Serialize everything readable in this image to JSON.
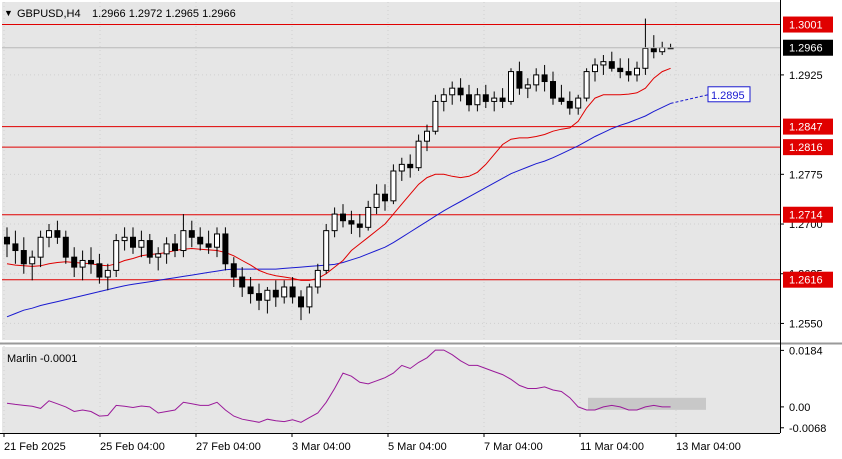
{
  "header": {
    "symbol_timeframe": "GBPUSD,H4",
    "ohlc": "1.2966 1.2972 1.2965 1.2966"
  },
  "colors": {
    "background": "#ffffff",
    "plot_background": "#e6e6e6",
    "bull_body": "#ffffff",
    "bear_body": "#000000",
    "level_line": "#e00000",
    "fast_ma": "#e00000",
    "slow_ma": "#1a1ad0",
    "oscillator": "#9a1a9a",
    "forecast_label": "#1a1ad0"
  },
  "price_axis": {
    "ticks": [
      "1.2925",
      "1.2775",
      "1.2700",
      "1.2625",
      "1.2550"
    ],
    "ylim": [
      1.2525,
      1.3035
    ]
  },
  "levels": [
    {
      "value": "1.3001"
    },
    {
      "value": "1.2847"
    },
    {
      "value": "1.2816"
    },
    {
      "value": "1.2714"
    },
    {
      "value": "1.2616"
    }
  ],
  "current_price_label": "1.2966",
  "forecast_label": "1.2895",
  "indicator": {
    "label": "Marlin -0.0001",
    "ticks": [
      "0.0184",
      "0.00",
      "-0.0068"
    ],
    "ylim": [
      -0.0085,
      0.0195
    ]
  },
  "time_axis": {
    "labels": [
      "21 Feb 2025",
      "25 Feb 04:00",
      "27 Feb 04:00",
      "3 Mar 04:00",
      "5 Mar 04:00",
      "7 Mar 04:00",
      "11 Mar 04:00",
      "13 Mar 04:00"
    ]
  },
  "chart_data": {
    "type": "candlestick",
    "candles": [
      [
        1.268,
        1.2695,
        1.265,
        1.267
      ],
      [
        1.267,
        1.269,
        1.264,
        1.266
      ],
      [
        1.266,
        1.268,
        1.2625,
        1.264
      ],
      [
        1.264,
        1.266,
        1.2615,
        1.265
      ],
      [
        1.265,
        1.269,
        1.2635,
        1.268
      ],
      [
        1.268,
        1.27,
        1.2665,
        1.269
      ],
      [
        1.269,
        1.2705,
        1.267,
        1.268
      ],
      [
        1.268,
        1.269,
        1.264,
        1.265
      ],
      [
        1.265,
        1.2665,
        1.262,
        1.2635
      ],
      [
        1.2635,
        1.266,
        1.2615,
        1.2645
      ],
      [
        1.2645,
        1.2665,
        1.2625,
        1.264
      ],
      [
        1.264,
        1.2655,
        1.261,
        1.262
      ],
      [
        1.262,
        1.264,
        1.26,
        1.263
      ],
      [
        1.263,
        1.2685,
        1.262,
        1.2675
      ],
      [
        1.2675,
        1.2695,
        1.266,
        1.268
      ],
      [
        1.268,
        1.2695,
        1.2655,
        1.2665
      ],
      [
        1.2665,
        1.269,
        1.265,
        1.2675
      ],
      [
        1.2675,
        1.2685,
        1.264,
        1.265
      ],
      [
        1.265,
        1.2665,
        1.263,
        1.2655
      ],
      [
        1.2655,
        1.268,
        1.264,
        1.267
      ],
      [
        1.267,
        1.2685,
        1.265,
        1.266
      ],
      [
        1.266,
        1.2715,
        1.265,
        1.269
      ],
      [
        1.269,
        1.2705,
        1.2665,
        1.268
      ],
      [
        1.268,
        1.2695,
        1.266,
        1.267
      ],
      [
        1.267,
        1.269,
        1.2655,
        1.2665
      ],
      [
        1.2665,
        1.2695,
        1.265,
        1.2685
      ],
      [
        1.2685,
        1.2695,
        1.263,
        1.264
      ],
      [
        1.264,
        1.265,
        1.2605,
        1.262
      ],
      [
        1.262,
        1.2635,
        1.259,
        1.2605
      ],
      [
        1.2605,
        1.262,
        1.258,
        1.2595
      ],
      [
        1.2595,
        1.261,
        1.257,
        1.2585
      ],
      [
        1.2585,
        1.2605,
        1.2565,
        1.26
      ],
      [
        1.26,
        1.2615,
        1.2575,
        1.259
      ],
      [
        1.259,
        1.2615,
        1.258,
        1.2605
      ],
      [
        1.2605,
        1.262,
        1.258,
        1.259
      ],
      [
        1.259,
        1.26,
        1.2555,
        1.2575
      ],
      [
        1.2575,
        1.261,
        1.2565,
        1.2605
      ],
      [
        1.2605,
        1.264,
        1.2595,
        1.263
      ],
      [
        1.263,
        1.27,
        1.2625,
        1.269
      ],
      [
        1.269,
        1.2725,
        1.268,
        1.2715
      ],
      [
        1.2715,
        1.273,
        1.2695,
        1.2705
      ],
      [
        1.2705,
        1.272,
        1.2685,
        1.27
      ],
      [
        1.27,
        1.2715,
        1.268,
        1.2695
      ],
      [
        1.2695,
        1.2735,
        1.269,
        1.2725
      ],
      [
        1.2725,
        1.276,
        1.2715,
        1.2745
      ],
      [
        1.2745,
        1.276,
        1.272,
        1.2735
      ],
      [
        1.2735,
        1.279,
        1.273,
        1.278
      ],
      [
        1.278,
        1.28,
        1.2765,
        1.279
      ],
      [
        1.279,
        1.2805,
        1.277,
        1.2785
      ],
      [
        1.2785,
        1.2835,
        1.278,
        1.2825
      ],
      [
        1.2825,
        1.285,
        1.281,
        1.284
      ],
      [
        1.284,
        1.2895,
        1.2835,
        1.2885
      ],
      [
        1.2885,
        1.2905,
        1.287,
        1.2895
      ],
      [
        1.2895,
        1.2915,
        1.288,
        1.2905
      ],
      [
        1.2905,
        1.292,
        1.2885,
        1.2895
      ],
      [
        1.2895,
        1.291,
        1.287,
        1.288
      ],
      [
        1.288,
        1.2905,
        1.287,
        1.2895
      ],
      [
        1.2895,
        1.291,
        1.2875,
        1.2885
      ],
      [
        1.2885,
        1.29,
        1.287,
        1.289
      ],
      [
        1.289,
        1.2905,
        1.2875,
        1.2885
      ],
      [
        1.2885,
        1.2935,
        1.288,
        1.293
      ],
      [
        1.293,
        1.2945,
        1.2895,
        1.2905
      ],
      [
        1.2905,
        1.292,
        1.289,
        1.291
      ],
      [
        1.291,
        1.2935,
        1.29,
        1.2925
      ],
      [
        1.2925,
        1.294,
        1.29,
        1.2915
      ],
      [
        1.2915,
        1.293,
        1.288,
        1.289
      ],
      [
        1.289,
        1.291,
        1.288,
        1.2885
      ],
      [
        1.2885,
        1.29,
        1.2865,
        1.2875
      ],
      [
        1.2875,
        1.2895,
        1.2865,
        1.289
      ],
      [
        1.289,
        1.2935,
        1.2885,
        1.293
      ],
      [
        1.293,
        1.295,
        1.2915,
        1.294
      ],
      [
        1.294,
        1.2955,
        1.2925,
        1.2945
      ],
      [
        1.2945,
        1.296,
        1.293,
        1.2935
      ],
      [
        1.2935,
        1.295,
        1.292,
        1.293
      ],
      [
        1.293,
        1.295,
        1.2915,
        1.2925
      ],
      [
        1.2925,
        1.2945,
        1.2915,
        1.2935
      ],
      [
        1.2935,
        1.301,
        1.2925,
        1.2965
      ],
      [
        1.2965,
        1.2985,
        1.295,
        1.296
      ],
      [
        1.296,
        1.2975,
        1.2955,
        1.2966
      ],
      [
        1.2966,
        1.2972,
        1.2965,
        1.2966
      ]
    ],
    "fast_ma": [
      1.264,
      1.2638,
      1.2637,
      1.2636,
      1.2637,
      1.264,
      1.2642,
      1.2643,
      1.2642,
      1.2641,
      1.264,
      1.2638,
      1.2637,
      1.264,
      1.2645,
      1.2648,
      1.2652,
      1.2654,
      1.2655,
      1.2657,
      1.266,
      1.2662,
      1.2663,
      1.2662,
      1.2661,
      1.266,
      1.2657,
      1.2652,
      1.2645,
      1.2638,
      1.263,
      1.2625,
      1.2622,
      1.262,
      1.2618,
      1.2615,
      1.2615,
      1.2618,
      1.2625,
      1.2635,
      1.2645,
      1.266,
      1.267,
      1.268,
      1.269,
      1.27,
      1.2715,
      1.273,
      1.2745,
      1.276,
      1.277,
      1.2775,
      1.2775,
      1.2772,
      1.277,
      1.2772,
      1.2778,
      1.279,
      1.2805,
      1.282,
      1.2828,
      1.283,
      1.283,
      1.2832,
      1.2835,
      1.284,
      1.2843,
      1.2845,
      1.2855,
      1.2875,
      1.289,
      1.2895,
      1.2895,
      1.2895,
      1.2896,
      1.2898,
      1.2905,
      1.292,
      1.293,
      1.2935
    ],
    "slow_ma": [
      1.256,
      1.2565,
      1.257,
      1.2573,
      1.2577,
      1.258,
      1.2583,
      1.2586,
      1.2589,
      1.2592,
      1.2595,
      1.2598,
      1.2601,
      1.2604,
      1.2607,
      1.2609,
      1.2611,
      1.2613,
      1.2615,
      1.2617,
      1.2619,
      1.2621,
      1.2623,
      1.2625,
      1.2627,
      1.2629,
      1.2631,
      1.2632,
      1.2632,
      1.2632,
      1.2632,
      1.2632,
      1.2632,
      1.2633,
      1.2634,
      1.2635,
      1.2636,
      1.2637,
      1.2638,
      1.2639,
      1.2642,
      1.2646,
      1.265,
      1.2655,
      1.266,
      1.2665,
      1.2672,
      1.268,
      1.2688,
      1.2696,
      1.2704,
      1.2712,
      1.272,
      1.2727,
      1.2734,
      1.2741,
      1.2748,
      1.2755,
      1.2762,
      1.2769,
      1.2776,
      1.2781,
      1.2786,
      1.2791,
      1.2795,
      1.28,
      1.2806,
      1.2812,
      1.2818,
      1.2825,
      1.2832,
      1.2838,
      1.2844,
      1.2849,
      1.2853,
      1.2858,
      1.2863,
      1.287,
      1.2876,
      1.2882
    ],
    "forecast": {
      "value": 1.2895
    },
    "oscillator": [
      0.0012,
      0.0008,
      0.0005,
      0.0002,
      -0.0005,
      0.002,
      0.001,
      0.0,
      -0.0015,
      -0.001,
      -0.0015,
      -0.003,
      -0.0028,
      0.0005,
      0.0002,
      -0.0002,
      0.0003,
      0.0,
      -0.002,
      -0.0015,
      -0.001,
      0.0015,
      0.001,
      0.0005,
      0.0005,
      0.0015,
      -0.001,
      -0.003,
      -0.004,
      -0.0045,
      -0.005,
      -0.004,
      -0.0045,
      -0.0048,
      -0.0042,
      -0.005,
      -0.0035,
      -0.002,
      0.0015,
      0.006,
      0.011,
      0.01,
      0.008,
      0.0075,
      0.0085,
      0.0095,
      0.011,
      0.0135,
      0.0125,
      0.0145,
      0.016,
      0.0185,
      0.0185,
      0.017,
      0.015,
      0.0135,
      0.0135,
      0.0125,
      0.0115,
      0.0105,
      0.009,
      0.007,
      0.006,
      0.006,
      0.0065,
      0.0055,
      0.005,
      0.003,
      0.0,
      -0.001,
      -0.001,
      0.0,
      0.0005,
      0.0,
      -0.001,
      -0.001,
      0.0,
      0.0005,
      0.0,
      0.0
    ]
  }
}
